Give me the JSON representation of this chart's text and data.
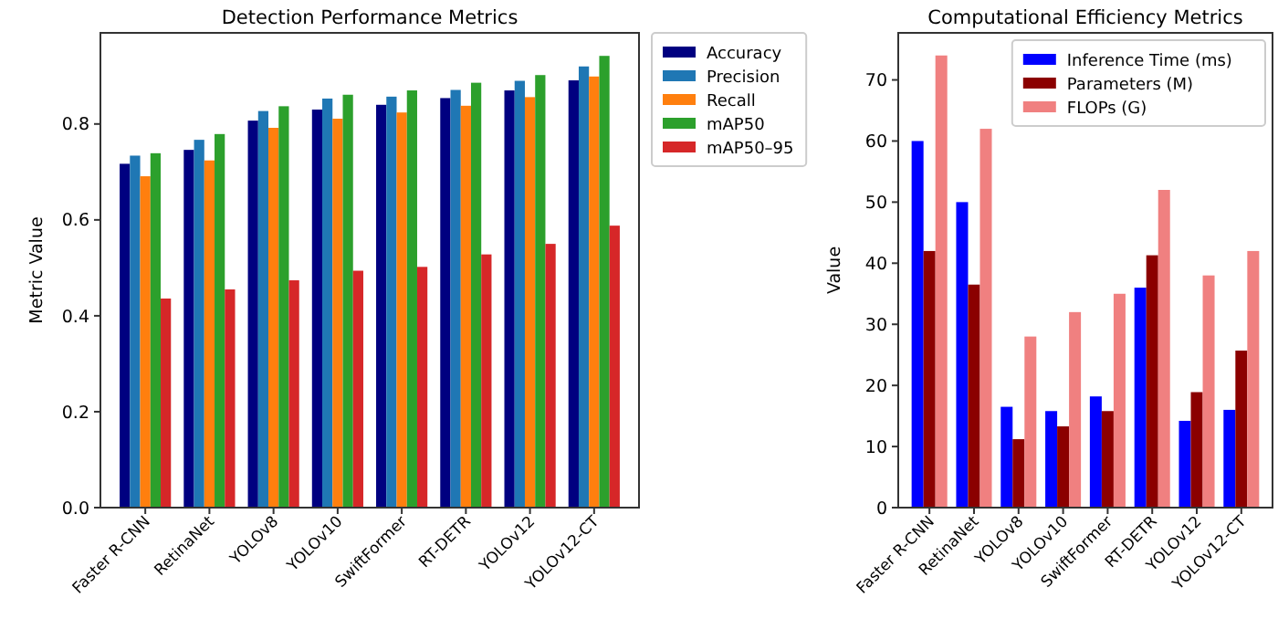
{
  "chart_data": [
    {
      "type": "bar",
      "title": "Detection Performance Metrics",
      "ylabel": "Metric Value",
      "categories": [
        "Faster R-CNN",
        "RetinaNet",
        "YOLOv8",
        "YOLOv10",
        "SwiftFormer",
        "RT-DETR",
        "YOLOv12",
        "YOLOv12-CT"
      ],
      "series": [
        {
          "name": "Accuracy",
          "color": "#000080",
          "values": [
            0.717,
            0.746,
            0.807,
            0.83,
            0.84,
            0.854,
            0.87,
            0.891
          ]
        },
        {
          "name": "Precision",
          "color": "#1f77b4",
          "values": [
            0.734,
            0.767,
            0.827,
            0.853,
            0.857,
            0.871,
            0.89,
            0.92
          ]
        },
        {
          "name": "Recall",
          "color": "#ff7f0e",
          "values": [
            0.691,
            0.724,
            0.792,
            0.811,
            0.824,
            0.838,
            0.856,
            0.899
          ]
        },
        {
          "name": "mAP50",
          "color": "#2ca02c",
          "values": [
            0.739,
            0.779,
            0.837,
            0.861,
            0.87,
            0.886,
            0.902,
            0.942
          ]
        },
        {
          "name": "mAP50–95",
          "color": "#d62728",
          "values": [
            0.436,
            0.455,
            0.474,
            0.494,
            0.502,
            0.528,
            0.55,
            0.588
          ]
        }
      ],
      "ylim": [
        0,
        0.99
      ],
      "yticks": [
        {
          "value": 0,
          "label": "0.0"
        },
        0.2,
        0.4,
        0.6,
        0.8
      ],
      "legend": "right"
    },
    {
      "type": "bar",
      "title": "Computational Efficiency Metrics",
      "ylabel": "Value",
      "categories": [
        "Faster R-CNN",
        "RetinaNet",
        "YOLOv8",
        "YOLOv10",
        "SwiftFormer",
        "RT-DETR",
        "YOLOv12",
        "YOLOv12-CT"
      ],
      "series": [
        {
          "name": "Inference Time (ms)",
          "color": "#0000ff",
          "values": [
            60,
            50,
            16.5,
            15.8,
            18.2,
            36,
            14.2,
            16
          ]
        },
        {
          "name": "Parameters (M)",
          "color": "#8b0000",
          "values": [
            42,
            36.5,
            11.2,
            13.3,
            15.8,
            41.3,
            18.9,
            25.7
          ]
        },
        {
          "name": "FLOPs (G)",
          "color": "#f08080",
          "values": [
            74,
            62,
            28,
            32,
            35,
            52,
            38,
            42
          ]
        }
      ],
      "ylim": [
        0,
        77.7
      ],
      "yticks": [
        0,
        10,
        20,
        30,
        40,
        50,
        60,
        70
      ],
      "legend": "top right"
    }
  ]
}
